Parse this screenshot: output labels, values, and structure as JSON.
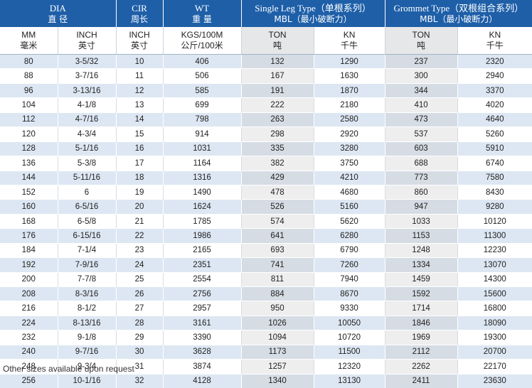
{
  "header": {
    "dia": {
      "en": "DIA",
      "zh": "直 径"
    },
    "cir": {
      "en": "CIR",
      "zh": "周长"
    },
    "wt": {
      "en": "WT",
      "zh": "重 量"
    },
    "single_leg": {
      "en": "Single Leg Type（单根系列）",
      "zh": "MBL（最小破断力）"
    },
    "grommet": {
      "en": "Grommet Type（双根组合系列）",
      "zh": "MBL（最小破断力）"
    }
  },
  "units": {
    "mm": {
      "en": "MM",
      "zh": "毫米"
    },
    "inch": {
      "en": "INCH",
      "zh": "英寸"
    },
    "cir_inch": {
      "en": "INCH",
      "zh": "英寸"
    },
    "wt": {
      "en": "KGS/100M",
      "zh": "公斤/100米"
    },
    "sl_ton": {
      "en": "TON",
      "zh": "吨"
    },
    "sl_kn": {
      "en": "KN",
      "zh": "千牛"
    },
    "g_ton": {
      "en": "TON",
      "zh": "吨"
    },
    "g_kn": {
      "en": "KN",
      "zh": "千牛"
    }
  },
  "rows": [
    [
      "80",
      "3-5/32",
      "10",
      "406",
      "132",
      "1290",
      "237",
      "2320"
    ],
    [
      "88",
      "3-7/16",
      "11",
      "506",
      "167",
      "1630",
      "300",
      "2940"
    ],
    [
      "96",
      "3-13/16",
      "12",
      "585",
      "191",
      "1870",
      "344",
      "3370"
    ],
    [
      "104",
      "4-1/8",
      "13",
      "699",
      "222",
      "2180",
      "410",
      "4020"
    ],
    [
      "112",
      "4-7/16",
      "14",
      "798",
      "263",
      "2580",
      "473",
      "4640"
    ],
    [
      "120",
      "4-3/4",
      "15",
      "914",
      "298",
      "2920",
      "537",
      "5260"
    ],
    [
      "128",
      "5-1/16",
      "16",
      "1031",
      "335",
      "3280",
      "603",
      "5910"
    ],
    [
      "136",
      "5-3/8",
      "17",
      "1164",
      "382",
      "3750",
      "688",
      "6740"
    ],
    [
      "144",
      "5-11/16",
      "18",
      "1316",
      "429",
      "4210",
      "773",
      "7580"
    ],
    [
      "152",
      "6",
      "19",
      "1490",
      "478",
      "4680",
      "860",
      "8430"
    ],
    [
      "160",
      "6-5/16",
      "20",
      "1624",
      "526",
      "5160",
      "947",
      "9280"
    ],
    [
      "168",
      "6-5/8",
      "21",
      "1785",
      "574",
      "5620",
      "1033",
      "10120"
    ],
    [
      "176",
      "6-15/16",
      "22",
      "1986",
      "641",
      "6280",
      "1153",
      "11300"
    ],
    [
      "184",
      "7-1/4",
      "23",
      "2165",
      "693",
      "6790",
      "1248",
      "12230"
    ],
    [
      "192",
      "7-9/16",
      "24",
      "2351",
      "741",
      "7260",
      "1334",
      "13070"
    ],
    [
      "200",
      "7-7/8",
      "25",
      "2554",
      "811",
      "7940",
      "1459",
      "14300"
    ],
    [
      "208",
      "8-3/16",
      "26",
      "2756",
      "884",
      "8670",
      "1592",
      "15600"
    ],
    [
      "216",
      "8-1/2",
      "27",
      "2957",
      "950",
      "9330",
      "1714",
      "16800"
    ],
    [
      "224",
      "8-13/16",
      "28",
      "3161",
      "1026",
      "10050",
      "1846",
      "18090"
    ],
    [
      "232",
      "9-1/8",
      "29",
      "3390",
      "1094",
      "10720",
      "1969",
      "19300"
    ],
    [
      "240",
      "9-7/16",
      "30",
      "3628",
      "1173",
      "11500",
      "2112",
      "20700"
    ],
    [
      "248",
      "9-3/4",
      "31",
      "3874",
      "1257",
      "12320",
      "2262",
      "22170"
    ],
    [
      "256",
      "10-1/16",
      "32",
      "4128",
      "1340",
      "13130",
      "2411",
      "23630"
    ]
  ],
  "footer": {
    "note": "Other sizes available upon request"
  },
  "colors": {
    "header_blue": "#1e5fa8",
    "row_blue": "#dde7f3",
    "row_grey": "#d5dce4"
  }
}
